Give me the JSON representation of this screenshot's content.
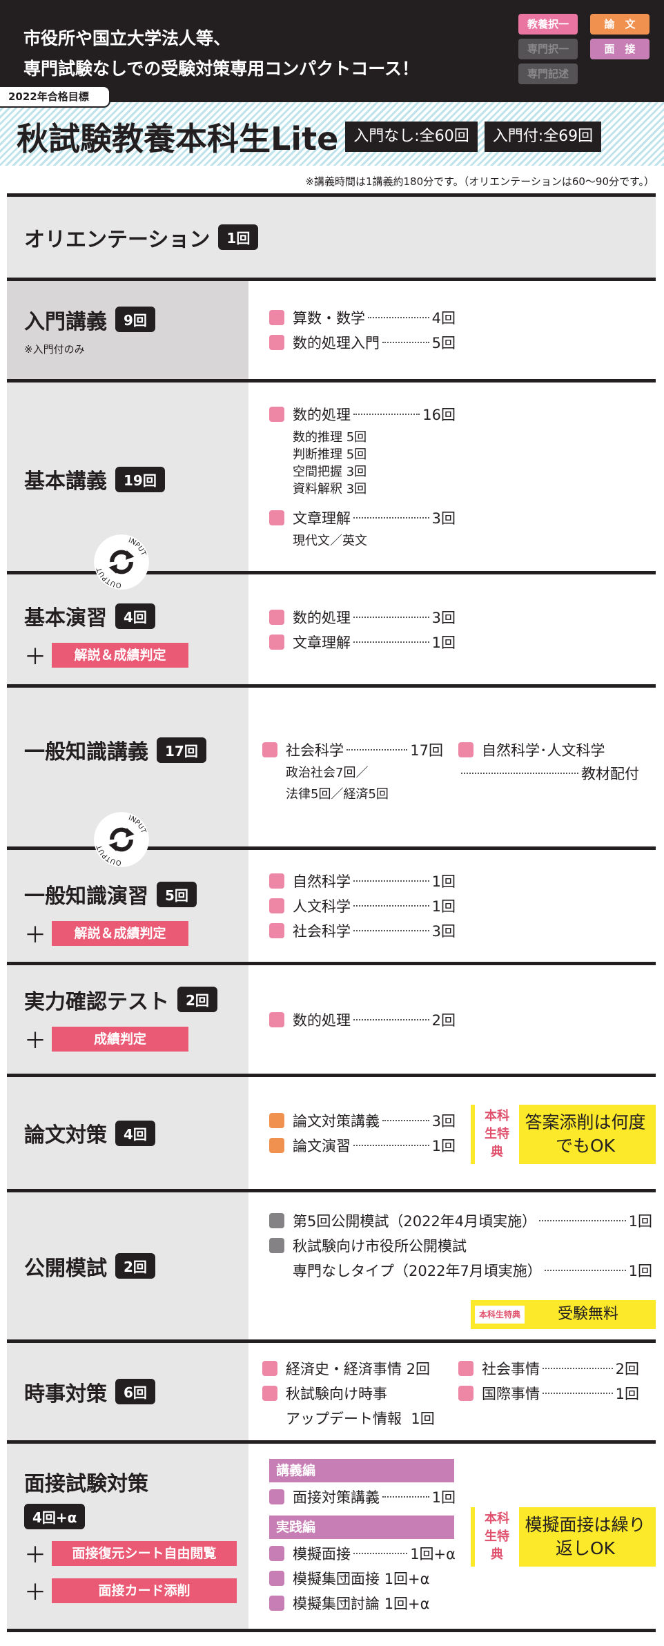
{
  "header": {
    "catch_line1": "市役所や国立大学法人等、",
    "catch_line2": "専門試験なしでの受験対策専用コンパクトコース！",
    "tags": [
      {
        "label": "教養択一",
        "active": true,
        "color": "#e975a0"
      },
      {
        "label": "専門択一",
        "active": false,
        "color": "#555355"
      },
      {
        "label": "専門記述",
        "active": false,
        "color": "#555355"
      },
      {
        "label": "論　文",
        "active": true,
        "color": "#f0914f"
      },
      {
        "label": "面　接",
        "active": true,
        "color": "#c77eb5"
      }
    ],
    "goal": "2022年合格目標",
    "title": "秋試験教養本科生Lite",
    "count_without_intro": "入門なし:全60回",
    "count_with_intro": "入門付:全69回",
    "note": "※講義時間は1講義約180分です。（オリエンテーションは60～90分です。）"
  },
  "cycle": {
    "input": "INPUT",
    "output": "OUTPUT"
  },
  "colors": {
    "pink": "#ee86a5",
    "orange": "#f0914f",
    "gray": "#848284",
    "purple": "#c77eb5",
    "highlight": "#fbe92a",
    "accent_red": "#ea5a74"
  },
  "rows": {
    "orientation": {
      "title": "オリエンテーション",
      "count": "1回"
    },
    "intro": {
      "title": "入門講義",
      "count": "9回",
      "sub": "※入門付のみ",
      "items": [
        {
          "label": "算数・数学",
          "n": "4回"
        },
        {
          "label": "数的処理入門",
          "n": "5回"
        }
      ]
    },
    "basic": {
      "title": "基本講義",
      "count": "19回",
      "items": [
        {
          "label": "数的処理",
          "n": "16回",
          "sub": [
            "数的推理 5回",
            "判断推理 5回",
            "空間把握 3回",
            "資料解釈 3回"
          ]
        },
        {
          "label": "文章理解",
          "n": "3回",
          "sub": [
            "現代文／英文"
          ]
        }
      ]
    },
    "basic_practice": {
      "title": "基本演習",
      "count": "4回",
      "extra": "解説＆成績判定",
      "items": [
        {
          "label": "数的処理",
          "n": "3回"
        },
        {
          "label": "文章理解",
          "n": "1回"
        }
      ]
    },
    "general": {
      "title": "一般知識講義",
      "count": "17回",
      "items": [
        {
          "label": "社会科学",
          "n": "17回",
          "sub": [
            "政治社会7回／",
            "法律5回／経済5回"
          ]
        }
      ],
      "side": {
        "label": "自然科学･人文科学",
        "n": "教材配付"
      }
    },
    "general_practice": {
      "title": "一般知識演習",
      "count": "5回",
      "extra": "解説＆成績判定",
      "items": [
        {
          "label": "自然科学",
          "n": "1回"
        },
        {
          "label": "人文科学",
          "n": "1回"
        },
        {
          "label": "社会科学",
          "n": "3回"
        }
      ]
    },
    "test": {
      "title": "実力確認テスト",
      "count": "2回",
      "extra": "成績判定",
      "items": [
        {
          "label": "数的処理",
          "n": "2回"
        }
      ]
    },
    "essay": {
      "title": "論文対策",
      "count": "4回",
      "items": [
        {
          "label": "論文対策講義",
          "n": "3回"
        },
        {
          "label": "論文演習",
          "n": "1回"
        }
      ],
      "perk_label": "本科生特典",
      "perk_text": "答案添削は何度でもOK"
    },
    "mock": {
      "title": "公開模試",
      "count": "2回",
      "items": [
        {
          "label": "第5回公開模試（2022年4月頃実施）",
          "n": "1回"
        },
        {
          "label": "秋試験向け市役所公開模試",
          "line2": "専門なしタイプ（2022年7月頃実施）",
          "n": "1回"
        }
      ],
      "perk_label": "本科生特典",
      "perk_text": "受験無料"
    },
    "current": {
      "title": "時事対策",
      "count": "6回",
      "items": [
        {
          "label": "経済史・経済事情",
          "n": "2回"
        },
        {
          "label": "秋試験向け時事",
          "line2": "アップデート情報",
          "n": "1回"
        }
      ],
      "side": [
        {
          "label": "社会事情",
          "n": "2回"
        },
        {
          "label": "国際事情",
          "n": "1回"
        }
      ]
    },
    "interview": {
      "title": "面接試験対策",
      "count": "4回+α",
      "extras": [
        "面接復元シート自由閲覧",
        "面接カード添削"
      ],
      "sect1": "講義編",
      "items1": [
        {
          "label": "面接対策講義",
          "n": "1回"
        }
      ],
      "sect2": "実践編",
      "items2": [
        {
          "label": "模擬面接",
          "n": "1回+α"
        },
        {
          "label": "模擬集団面接",
          "n": "1回+α"
        },
        {
          "label": "模擬集団討論",
          "n": "1回+α"
        }
      ],
      "perk_label": "本科生特典",
      "perk_text": "模擬面接は繰り返しOK"
    }
  }
}
